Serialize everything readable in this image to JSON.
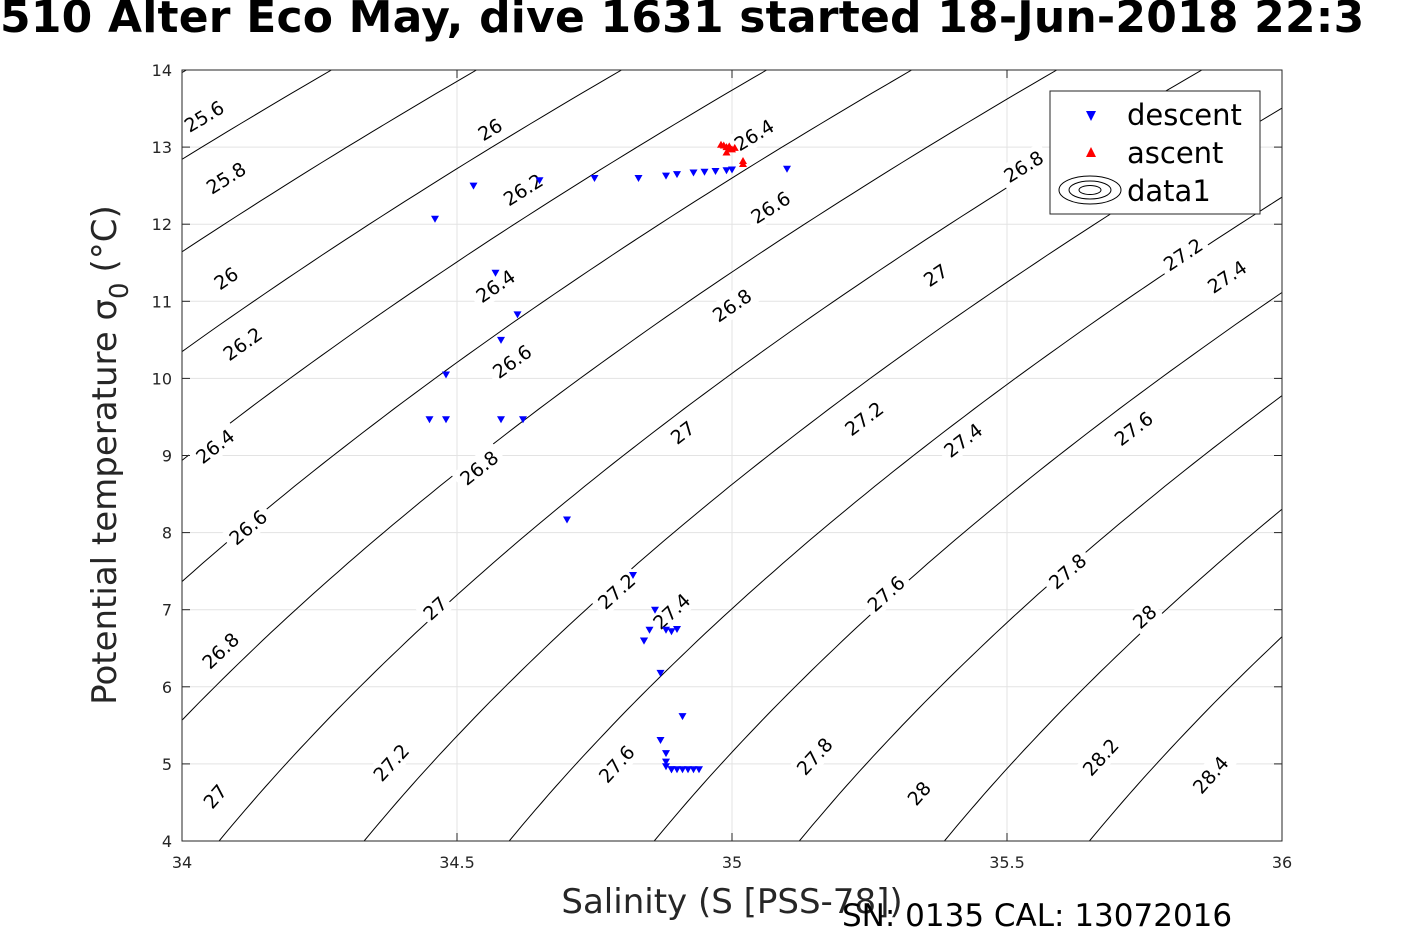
{
  "title": "510 Alter Eco May, dive 1631 started 18-Jun-2018 22:3",
  "footer": "SN: 0135  CAL: 13072016",
  "chart_data": {
    "type": "scatter",
    "xlabel": "Salinity (S [PSS-78])",
    "ylabel": "Potential temperature σ",
    "ylabel_subscript": "0",
    "ylabel_unit": "(°C)",
    "xlim": [
      34,
      36
    ],
    "ylim": [
      4,
      14
    ],
    "xticks": [
      34,
      34.5,
      35,
      35.5,
      36
    ],
    "xtick_labels": [
      "34",
      "34.5",
      "35",
      "35.5",
      "36"
    ],
    "yticks": [
      4,
      5,
      6,
      7,
      8,
      9,
      10,
      11,
      12,
      13,
      14
    ],
    "ytick_labels": [
      "4",
      "5",
      "6",
      "7",
      "8",
      "9",
      "10",
      "11",
      "12",
      "13",
      "14"
    ],
    "grid": true,
    "legend_position": "top-right",
    "legend": [
      "descent",
      "ascent",
      "data1"
    ],
    "contour_levels": [
      25.6,
      25.8,
      26,
      26.2,
      26.4,
      26.6,
      26.8,
      27,
      27.2,
      27.4,
      27.6,
      27.8,
      28,
      28.2,
      28.4
    ],
    "contour_labels": [
      {
        "text": "25.6",
        "x": 34.04,
        "y": 13.4
      },
      {
        "text": "25.8",
        "x": 34.08,
        "y": 12.6
      },
      {
        "text": "26",
        "x": 34.08,
        "y": 11.3
      },
      {
        "text": "26.2",
        "x": 34.11,
        "y": 10.45
      },
      {
        "text": "26.4",
        "x": 34.06,
        "y": 9.12
      },
      {
        "text": "26.6",
        "x": 34.12,
        "y": 8.07
      },
      {
        "text": "26.8",
        "x": 34.07,
        "y": 6.47
      },
      {
        "text": "27",
        "x": 34.06,
        "y": 4.58
      },
      {
        "text": "26",
        "x": 34.56,
        "y": 13.23
      },
      {
        "text": "26.2",
        "x": 34.62,
        "y": 12.45
      },
      {
        "text": "26.4",
        "x": 34.57,
        "y": 11.2
      },
      {
        "text": "26.6",
        "x": 34.6,
        "y": 10.22
      },
      {
        "text": "26.8",
        "x": 34.54,
        "y": 8.84
      },
      {
        "text": "27",
        "x": 34.46,
        "y": 7.02
      },
      {
        "text": "27.2",
        "x": 34.38,
        "y": 5.02
      },
      {
        "text": "26.4",
        "x": 35.04,
        "y": 13.16
      },
      {
        "text": "26.6",
        "x": 35.07,
        "y": 12.22
      },
      {
        "text": "26.8",
        "x": 35.0,
        "y": 10.95
      },
      {
        "text": "27",
        "x": 34.91,
        "y": 9.3
      },
      {
        "text": "27.2",
        "x": 34.79,
        "y": 7.24
      },
      {
        "text": "27.4",
        "x": 34.89,
        "y": 6.98
      },
      {
        "text": "27.6",
        "x": 34.79,
        "y": 5.0
      },
      {
        "text": "26.8",
        "x": 35.53,
        "y": 12.75
      },
      {
        "text": "27",
        "x": 35.37,
        "y": 11.34
      },
      {
        "text": "27.2",
        "x": 35.24,
        "y": 9.48
      },
      {
        "text": "27.4",
        "x": 35.42,
        "y": 9.2
      },
      {
        "text": "27.6",
        "x": 35.28,
        "y": 7.21
      },
      {
        "text": "27.8",
        "x": 35.15,
        "y": 5.1
      },
      {
        "text": "28",
        "x": 35.34,
        "y": 4.62
      },
      {
        "text": "27.2",
        "x": 35.82,
        "y": 11.61
      },
      {
        "text": "27.4",
        "x": 35.9,
        "y": 11.32
      },
      {
        "text": "27.6",
        "x": 35.73,
        "y": 9.35
      },
      {
        "text": "27.8",
        "x": 35.61,
        "y": 7.5
      },
      {
        "text": "28",
        "x": 35.75,
        "y": 6.91
      },
      {
        "text": "28.2",
        "x": 35.67,
        "y": 5.09
      },
      {
        "text": "28.4",
        "x": 35.87,
        "y": 4.86
      }
    ],
    "series": [
      {
        "name": "descent",
        "marker": "triangle-down",
        "color": "#0000ff",
        "x": [
          34.46,
          34.48,
          34.53,
          34.57,
          34.58,
          34.61,
          34.65,
          34.7,
          34.75,
          34.83,
          34.88,
          34.9,
          34.93,
          34.95,
          34.97,
          34.99,
          35.0,
          35.1,
          34.45,
          34.48,
          34.58,
          34.62,
          34.82,
          34.84,
          34.85,
          34.86,
          34.87,
          34.88,
          34.89,
          34.9,
          34.84,
          34.87,
          34.88,
          34.91,
          34.88,
          34.88,
          34.89,
          34.89,
          34.9,
          34.91,
          34.92,
          34.93,
          34.94
        ],
        "y": [
          12.07,
          10.05,
          12.5,
          11.37,
          10.5,
          10.83,
          12.57,
          8.17,
          12.6,
          12.6,
          12.63,
          12.65,
          12.67,
          12.68,
          12.69,
          12.7,
          12.71,
          12.72,
          9.47,
          9.47,
          9.47,
          9.47,
          7.45,
          6.6,
          6.74,
          7.0,
          6.18,
          6.74,
          6.72,
          6.75,
          6.6,
          5.31,
          5.14,
          5.62,
          5.03,
          4.97,
          4.93,
          4.93,
          4.93,
          4.93,
          4.93,
          4.93,
          4.93
        ]
      },
      {
        "name": "ascent",
        "marker": "triangle-up",
        "color": "#ff0000",
        "x": [
          34.98,
          34.985,
          34.99,
          34.995,
          35.0,
          35.005,
          34.99,
          35.02,
          35.02,
          34.995
        ],
        "y": [
          13.03,
          13.02,
          13.0,
          12.98,
          12.97,
          12.99,
          12.93,
          12.82,
          12.78,
          13.01
        ]
      }
    ]
  }
}
